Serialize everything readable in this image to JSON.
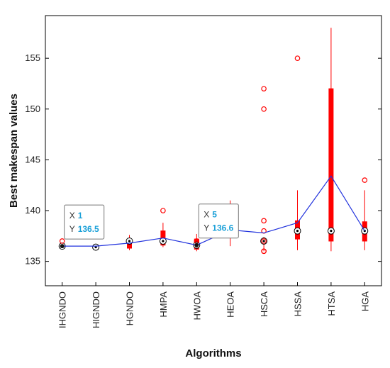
{
  "chart_data": {
    "type": "box",
    "title": "",
    "xlabel": "Algorithms",
    "ylabel": "Best makespan values",
    "ylim": [
      132.6,
      159.2
    ],
    "yticks": [
      135,
      140,
      145,
      150,
      155
    ],
    "grid": false,
    "categories": [
      "IHGNDO",
      "HIGNDO",
      "HGNDO",
      "HMPA",
      "HWOA",
      "HEOA",
      "HSCA",
      "HSSA",
      "HTSA",
      "HGA"
    ],
    "boxes": [
      {
        "q1": 136.3,
        "median": 136.5,
        "q3": 136.6,
        "whisker_low": 136.2,
        "whisker_high": 136.8,
        "outliers": [
          137.0
        ]
      },
      {
        "q1": 136.2,
        "median": 136.4,
        "q3": 136.6,
        "whisker_low": 136.1,
        "whisker_high": 136.7,
        "outliers": []
      },
      {
        "q1": 136.3,
        "median": 137.0,
        "q3": 137.2,
        "whisker_low": 136.1,
        "whisker_high": 137.6,
        "outliers": []
      },
      {
        "q1": 136.6,
        "median": 137.0,
        "q3": 138.0,
        "whisker_low": 136.4,
        "whisker_high": 138.8,
        "outliers": [
          140.0
        ]
      },
      {
        "q1": 136.2,
        "median": 136.6,
        "q3": 137.2,
        "whisker_low": 136.0,
        "whisker_high": 137.7,
        "outliers": [
          137.0
        ]
      },
      {
        "q1": 137.8,
        "median": 138.0,
        "q3": 138.4,
        "whisker_low": 136.5,
        "whisker_high": 141.0,
        "outliers": []
      },
      {
        "q1": 137.0,
        "median": 137.0,
        "q3": 137.2,
        "whisker_low": 136.0,
        "whisker_high": 137.4,
        "outliers": [
          136.0,
          136.0,
          137.0,
          138.0,
          139.0,
          150.0,
          152.0
        ]
      },
      {
        "q1": 137.2,
        "median": 138.0,
        "q3": 139.0,
        "whisker_low": 136.1,
        "whisker_high": 142.0,
        "outliers": [
          155.0
        ]
      },
      {
        "q1": 137.0,
        "median": 138.0,
        "q3": 152.0,
        "whisker_low": 136.0,
        "whisker_high": 158.0,
        "outliers": []
      },
      {
        "q1": 137.0,
        "median": 138.0,
        "q3": 138.9,
        "whisker_low": 136.1,
        "whisker_high": 142.0,
        "outliers": [
          143.0
        ]
      }
    ],
    "mean_line": {
      "x": [
        1,
        2,
        3,
        4,
        5,
        6,
        7,
        8,
        9,
        10
      ],
      "y": [
        136.5,
        136.5,
        136.8,
        137.3,
        136.6,
        138.1,
        137.8,
        138.8,
        143.4,
        138.0
      ]
    },
    "datatips": [
      {
        "x_label": "X",
        "x_value": "1",
        "y_label": "Y",
        "y_value": "136.5",
        "x": 1,
        "y": 136.5
      },
      {
        "x_label": "X",
        "x_value": "5",
        "y_label": "Y",
        "y_value": "136.6",
        "x": 5,
        "y": 136.6
      }
    ],
    "colors": {
      "box": "#ff0000",
      "mean_line": "#2233dd",
      "axes": "#000000",
      "tip_value": "#1aa0d8"
    }
  }
}
